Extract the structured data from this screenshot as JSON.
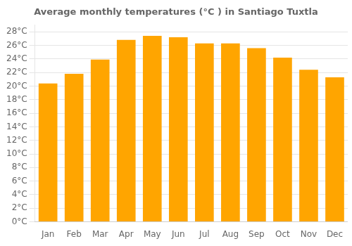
{
  "chart_data": {
    "type": "bar",
    "title": "Average monthly temperatures (°C ) in Santiago Tuxtla",
    "categories": [
      "Jan",
      "Feb",
      "Mar",
      "Apr",
      "May",
      "Jun",
      "Jul",
      "Aug",
      "Sep",
      "Oct",
      "Nov",
      "Dec"
    ],
    "values": [
      20.4,
      21.8,
      23.9,
      26.8,
      27.4,
      27.2,
      26.3,
      26.3,
      25.6,
      24.2,
      22.4,
      21.3
    ],
    "color": "#FFA500",
    "ylim": [
      0,
      29
    ],
    "yticks": [
      {
        "value": 0,
        "label": "0°C"
      },
      {
        "value": 2,
        "label": "2°C"
      },
      {
        "value": 4,
        "label": "4°C"
      },
      {
        "value": 6,
        "label": "6°C"
      },
      {
        "value": 8,
        "label": "8°C"
      },
      {
        "value": 10,
        "label": "10°C"
      },
      {
        "value": 12,
        "label": "12°C"
      },
      {
        "value": 14,
        "label": "14°C"
      },
      {
        "value": 16,
        "label": "16°C"
      },
      {
        "value": 18,
        "label": "18°C"
      },
      {
        "value": 20,
        "label": "20°C"
      },
      {
        "value": 22,
        "label": "22°C"
      },
      {
        "value": 24,
        "label": "24°C"
      },
      {
        "value": 26,
        "label": "26°C"
      },
      {
        "value": 28,
        "label": "28°C"
      }
    ],
    "grid": true
  }
}
